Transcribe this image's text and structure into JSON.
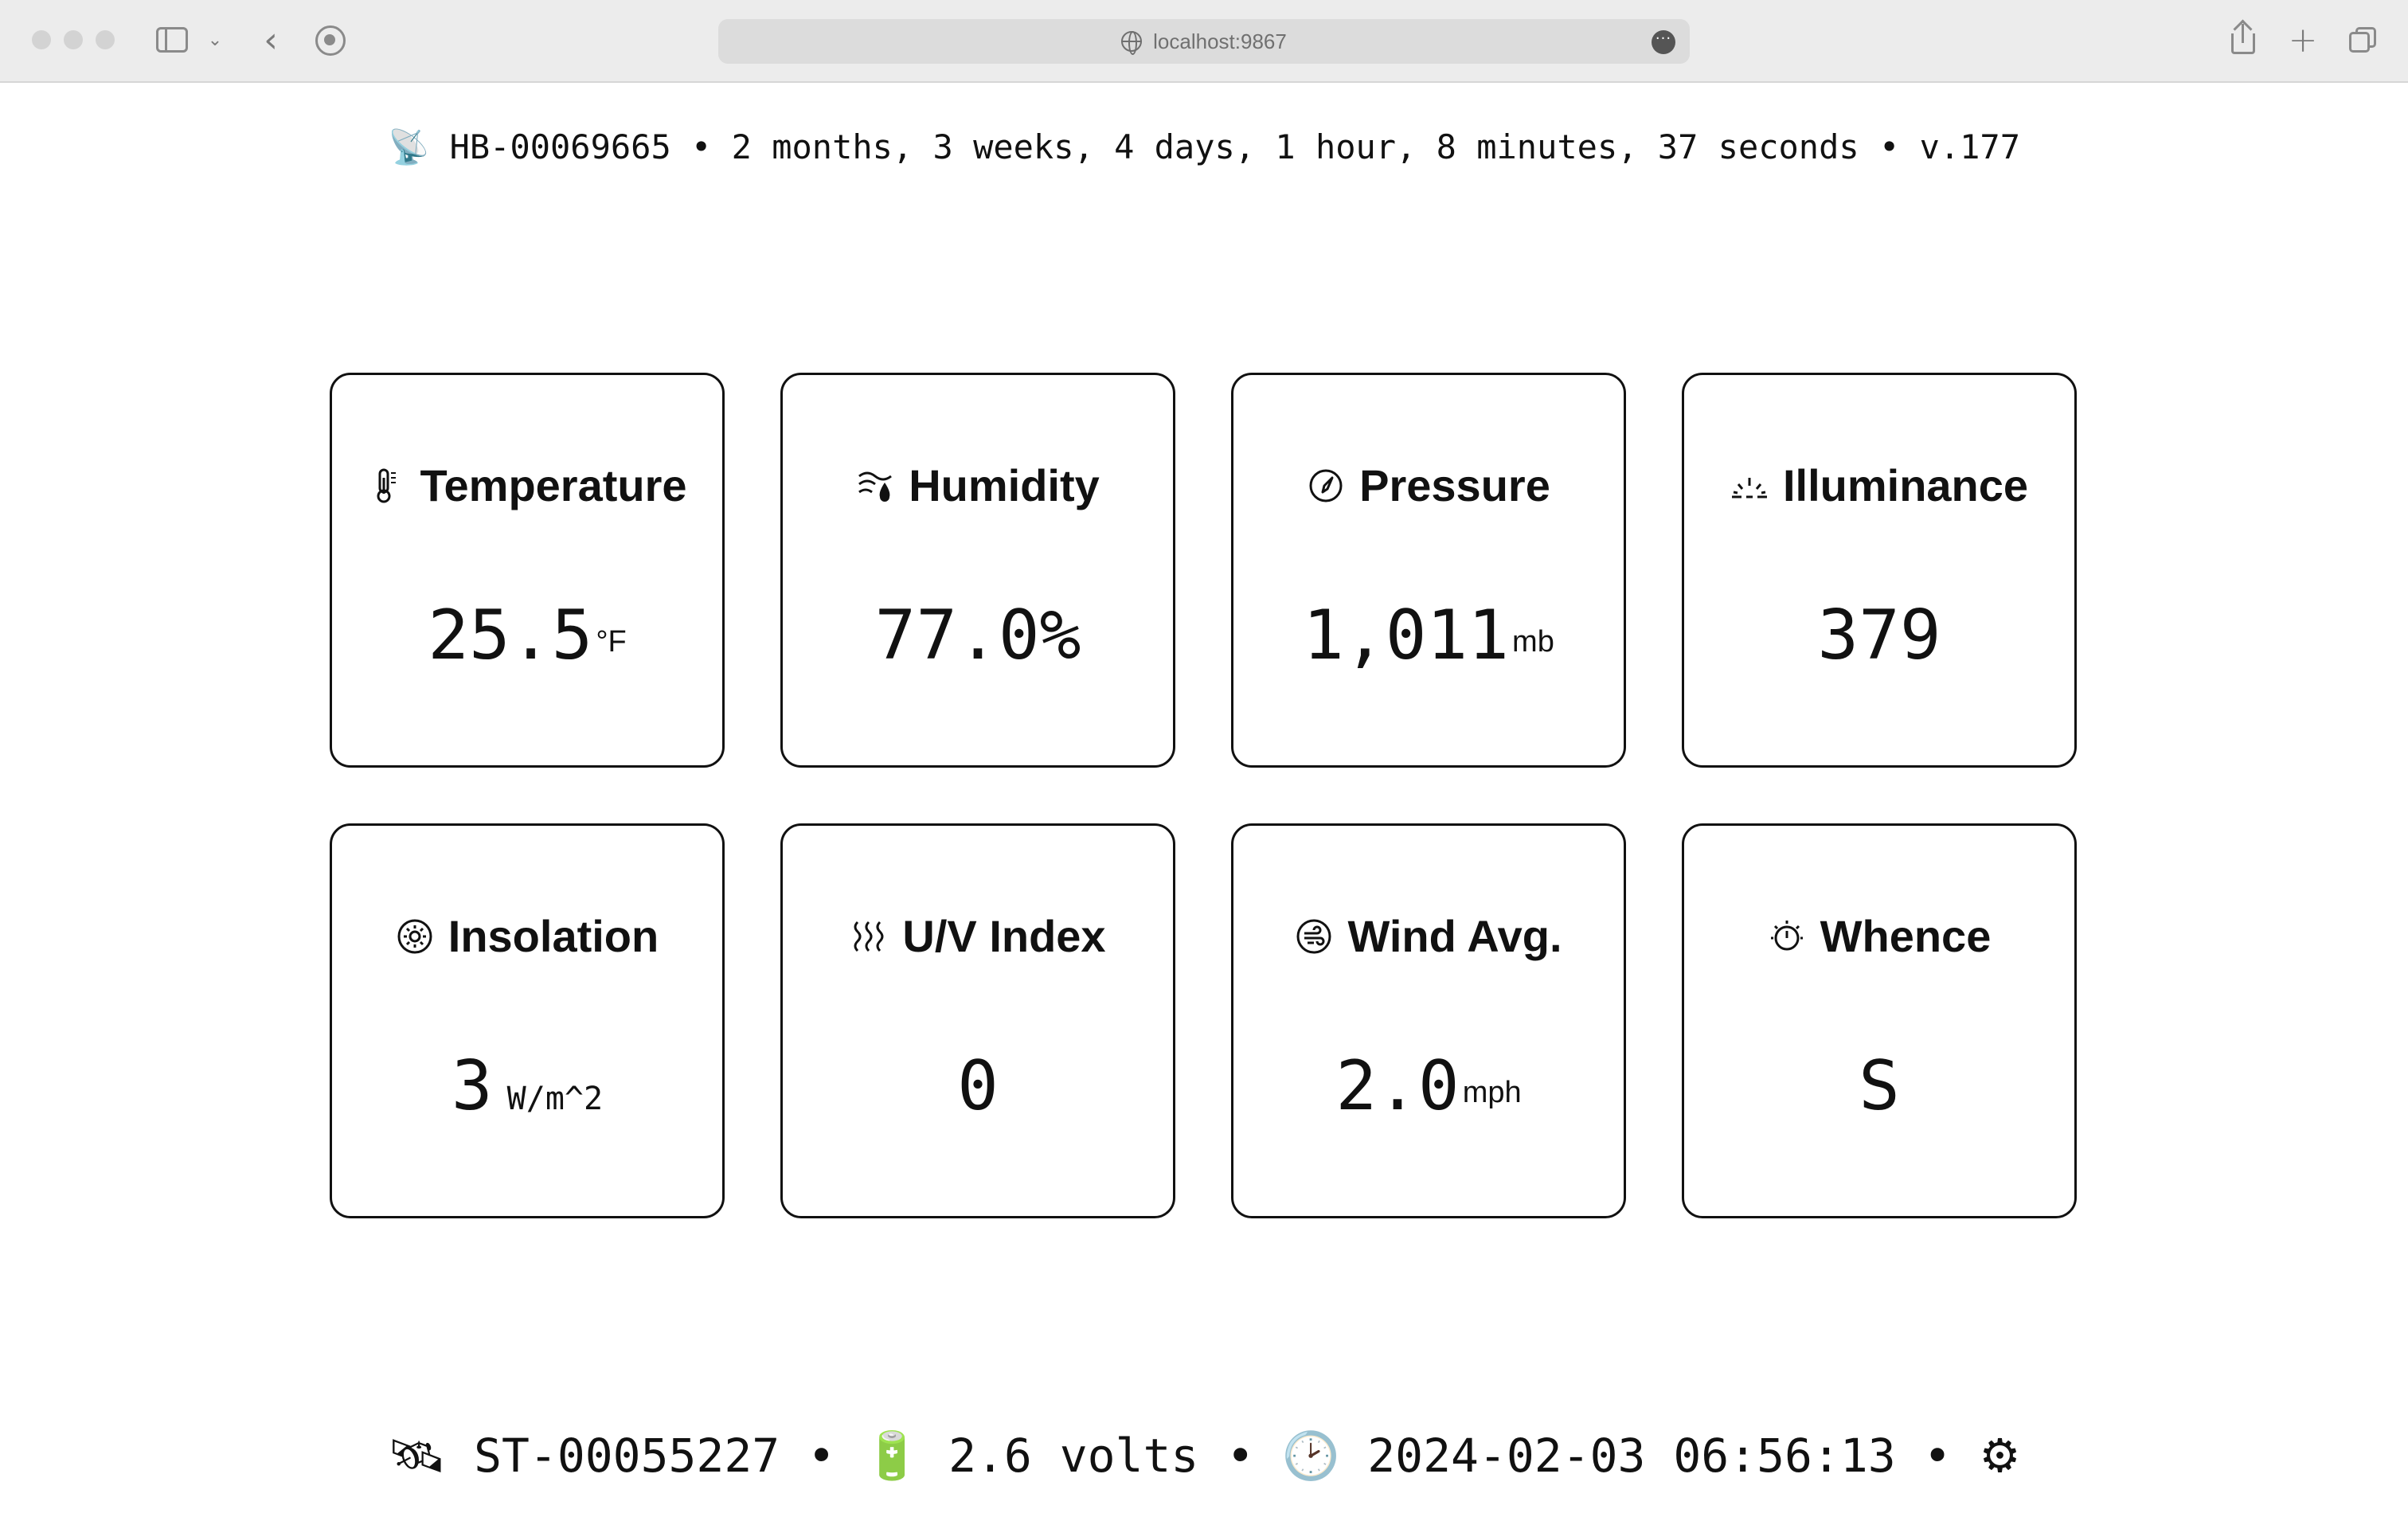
{
  "browser": {
    "url": "localhost:9867"
  },
  "hub_status": {
    "icon": "satellite-dish-icon",
    "hub_id": "HB-00069665",
    "uptime": "2 months, 3 weeks, 4 days, 1 hour, 8 minutes, 37 seconds",
    "version": "v.177",
    "separator": "•"
  },
  "cards": [
    {
      "label": "Temperature",
      "icon": "thermometer-icon",
      "value": "25.5",
      "unit": "°F",
      "unit_style": "sup"
    },
    {
      "label": "Humidity",
      "icon": "humidity-icon",
      "value": "77.0%",
      "unit": "",
      "unit_style": "none"
    },
    {
      "label": "Pressure",
      "icon": "gauge-icon",
      "value": "1,011",
      "unit": "mb",
      "unit_style": "sup"
    },
    {
      "label": "Illuminance",
      "icon": "sunrise-icon",
      "value": "379",
      "unit": "",
      "unit_style": "none"
    },
    {
      "label": "Insolation",
      "icon": "sun-icon",
      "value": "3",
      "unit": "W/m^2",
      "unit_style": "sub"
    },
    {
      "label": "U/V Index",
      "icon": "heat-waves-icon",
      "value": "0",
      "unit": "",
      "unit_style": "none"
    },
    {
      "label": "Wind Avg.",
      "icon": "wind-icon",
      "value": "2.0",
      "unit": "mph",
      "unit_style": "sup"
    },
    {
      "label": "Whence",
      "icon": "compass-timer-icon",
      "value": "S",
      "unit": "",
      "unit_style": "none"
    }
  ],
  "station_status": {
    "station_icon": "satellite-icon",
    "station_id": "ST-00055227",
    "battery_icon": "battery-icon",
    "battery": "2.6 volts",
    "clock_icon": "clock-icon",
    "timestamp": "2024-02-03 06:56:13",
    "settings_icon": "gear-icon",
    "separator": "•"
  }
}
